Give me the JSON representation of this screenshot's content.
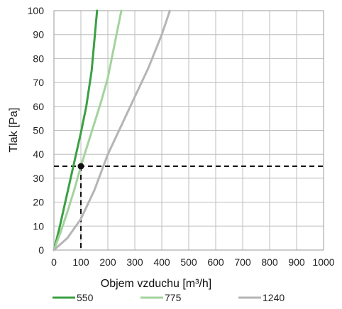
{
  "chart_data": {
    "type": "line",
    "xlabel": "Objem vzduchu [m³/h]",
    "ylabel": "Tlak [Pa]",
    "xlim": [
      0,
      1000
    ],
    "ylim": [
      0,
      100
    ],
    "x_ticks": [
      "0",
      "100",
      "200",
      "300",
      "400",
      "500",
      "600",
      "700",
      "800",
      "900",
      "1000"
    ],
    "y_ticks": [
      "0",
      "10",
      "20",
      "30",
      "40",
      "50",
      "60",
      "70",
      "80",
      "90",
      "100"
    ],
    "grid": true,
    "legend_position": "bottom",
    "series": [
      {
        "name": "550",
        "color": "#3aa043",
        "x": [
          0,
          20,
          40,
          60,
          80,
          100,
          120,
          140,
          160
        ],
        "y": [
          0,
          9,
          19,
          29,
          39,
          49,
          60,
          75,
          100
        ]
      },
      {
        "name": "775",
        "color": "#a3d39c",
        "x": [
          0,
          25,
          50,
          75,
          100,
          125,
          150,
          175,
          200,
          225,
          250
        ],
        "y": [
          0,
          7.5,
          16,
          25,
          35,
          44,
          53,
          62,
          72,
          86,
          100
        ]
      },
      {
        "name": "1240",
        "color": "#b5b5b5",
        "x": [
          0,
          50,
          100,
          150,
          200,
          250,
          300,
          350,
          400,
          430
        ],
        "y": [
          0,
          5,
          13,
          25,
          40,
          52,
          64,
          76,
          90,
          100
        ]
      }
    ],
    "marker": {
      "x": 100,
      "y": 35
    },
    "reference_lines": {
      "horizontal_y": 35,
      "vertical_x": 100
    }
  }
}
